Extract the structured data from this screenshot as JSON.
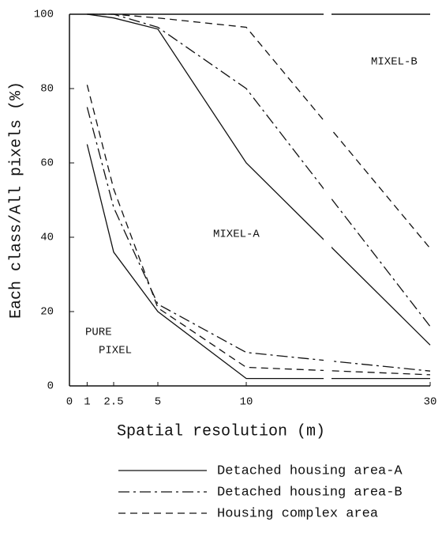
{
  "chart_data": {
    "type": "line",
    "xlabel": "Spatial resolution (m)",
    "ylabel": "Each class/All pixels (%)",
    "xlim": [
      0,
      30
    ],
    "xticks": [
      0,
      1,
      2.5,
      5,
      10,
      30
    ],
    "ylim": [
      0,
      100
    ],
    "yticks": [
      0,
      20,
      40,
      60,
      80,
      100
    ],
    "x": [
      1,
      2.5,
      5,
      10,
      30
    ],
    "series": [
      {
        "name": "Detached housing area-A",
        "color": "#111111",
        "dash": "solid",
        "values": [
          65,
          36,
          20,
          2,
          2
        ],
        "values_upper": [
          100,
          99,
          96,
          60,
          11
        ]
      },
      {
        "name": "Detached housing area-B",
        "color": "#111111",
        "dash": "dashdot",
        "values": [
          75,
          48,
          22,
          9,
          4
        ],
        "values_upper": [
          100,
          100,
          96.5,
          80,
          16
        ]
      },
      {
        "name": "Housing complex area",
        "color": "#111111",
        "dash": "dashed",
        "values": [
          81,
          53,
          21,
          5,
          3
        ],
        "values_upper": [
          100,
          100,
          99,
          96.5,
          37
        ]
      }
    ],
    "annotations": [
      "MIXEL-B",
      "MIXEL-A",
      "PURE",
      "PIXEL"
    ],
    "axis_break": true
  }
}
